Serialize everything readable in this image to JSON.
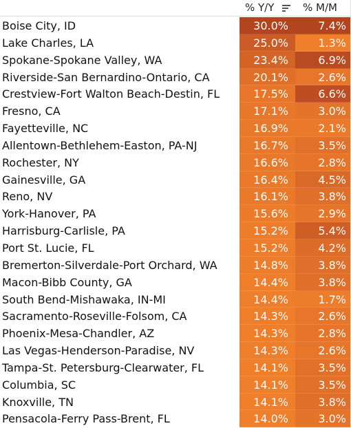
{
  "header": {
    "yoy_label": "% Y/Y",
    "mom_label": "% M/M",
    "sort_icon": "sort-descending-icon"
  },
  "colors": {
    "max": "#b4441f",
    "mid": "#db6b28",
    "min": "#f07f2b"
  },
  "rows": [
    {
      "name": "Boise City, ID",
      "yoy": "30.0%",
      "mom": "7.4%"
    },
    {
      "name": "Lake Charles, LA",
      "yoy": "25.0%",
      "mom": "1.3%"
    },
    {
      "name": "Spokane-Spokane Valley, WA",
      "yoy": "23.4%",
      "mom": "6.9%"
    },
    {
      "name": "Riverside-San Bernardino-Ontario, CA",
      "yoy": "20.1%",
      "mom": "2.6%"
    },
    {
      "name": "Crestview-Fort Walton Beach-Destin, FL",
      "yoy": "17.5%",
      "mom": "6.6%"
    },
    {
      "name": "Fresno, CA",
      "yoy": "17.1%",
      "mom": "3.0%"
    },
    {
      "name": "Fayetteville, NC",
      "yoy": "16.9%",
      "mom": "2.1%"
    },
    {
      "name": "Allentown-Bethlehem-Easton, PA-NJ",
      "yoy": "16.7%",
      "mom": "3.5%"
    },
    {
      "name": "Rochester, NY",
      "yoy": "16.6%",
      "mom": "2.8%"
    },
    {
      "name": "Gainesville, GA",
      "yoy": "16.4%",
      "mom": "4.5%"
    },
    {
      "name": "Reno, NV",
      "yoy": "16.1%",
      "mom": "3.8%"
    },
    {
      "name": "York-Hanover, PA",
      "yoy": "15.6%",
      "mom": "2.9%"
    },
    {
      "name": "Harrisburg-Carlisle, PA",
      "yoy": "15.2%",
      "mom": "5.4%"
    },
    {
      "name": "Port St. Lucie, FL",
      "yoy": "15.2%",
      "mom": "4.2%"
    },
    {
      "name": "Bremerton-Silverdale-Port Orchard, WA",
      "yoy": "14.8%",
      "mom": "3.8%"
    },
    {
      "name": "Macon-Bibb County, GA",
      "yoy": "14.4%",
      "mom": "3.8%"
    },
    {
      "name": "South Bend-Mishawaka, IN-MI",
      "yoy": "14.4%",
      "mom": "1.7%"
    },
    {
      "name": "Sacramento-Roseville-Folsom, CA",
      "yoy": "14.3%",
      "mom": "2.6%"
    },
    {
      "name": "Phoenix-Mesa-Chandler, AZ",
      "yoy": "14.3%",
      "mom": "2.8%"
    },
    {
      "name": "Las Vegas-Henderson-Paradise, NV",
      "yoy": "14.3%",
      "mom": "2.6%"
    },
    {
      "name": "Tampa-St. Petersburg-Clearwater, FL",
      "yoy": "14.1%",
      "mom": "3.5%"
    },
    {
      "name": "Columbia, SC",
      "yoy": "14.1%",
      "mom": "3.5%"
    },
    {
      "name": "Knoxville, TN",
      "yoy": "14.1%",
      "mom": "3.8%"
    },
    {
      "name": "Pensacola-Ferry Pass-Brent, FL",
      "yoy": "14.0%",
      "mom": "3.0%"
    }
  ]
}
